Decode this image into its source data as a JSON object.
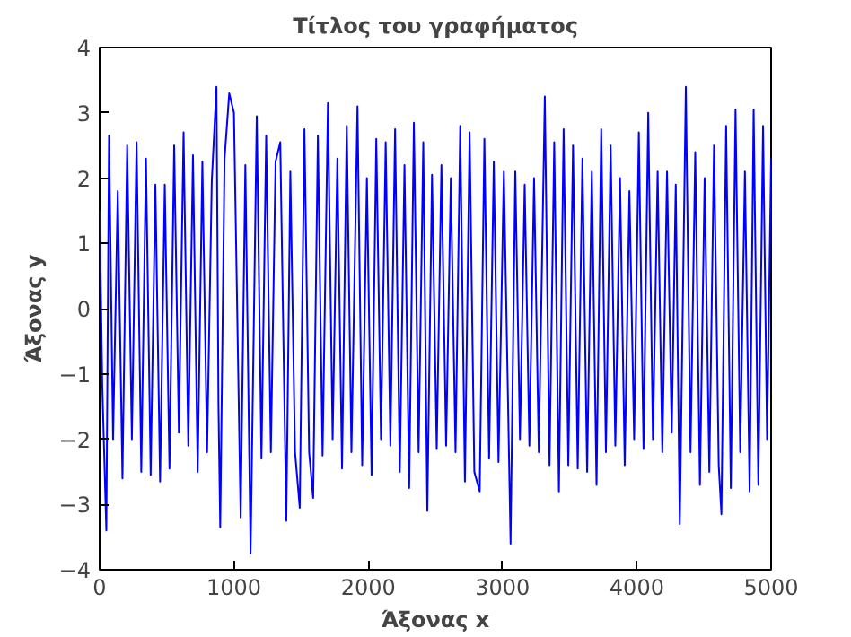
{
  "chart_data": {
    "type": "line",
    "title": "Τίτλος του γραφήματος",
    "xlabel": "Άξονας x",
    "ylabel": "Άξονας y",
    "xlim": [
      0,
      5000
    ],
    "ylim": [
      -4,
      4
    ],
    "xticks": [
      0,
      1000,
      2000,
      3000,
      4000,
      5000
    ],
    "yticks": [
      -4,
      -3,
      -2,
      -1,
      0,
      1,
      2,
      3,
      4
    ],
    "grid": false,
    "marker": "none",
    "line_style": "solid",
    "series": [
      {
        "color": "#0000ff",
        "x": [
          0,
          20,
          50,
          70,
          100,
          135,
          170,
          205,
          240,
          275,
          310,
          345,
          380,
          415,
          450,
          485,
          520,
          555,
          590,
          625,
          660,
          695,
          730,
          765,
          800,
          835,
          870,
          885,
          898,
          930,
          965,
          1000,
          1050,
          1085,
          1124,
          1170,
          1205,
          1240,
          1275,
          1310,
          1345,
          1390,
          1420,
          1455,
          1490,
          1525,
          1560,
          1590,
          1625,
          1660,
          1700,
          1735,
          1770,
          1805,
          1840,
          1875,
          1920,
          1955,
          1990,
          2025,
          2060,
          2095,
          2130,
          2165,
          2200,
          2235,
          2270,
          2305,
          2340,
          2375,
          2410,
          2440,
          2475,
          2510,
          2545,
          2580,
          2615,
          2650,
          2685,
          2720,
          2755,
          2790,
          2830,
          2865,
          2900,
          2935,
          2970,
          3010,
          3060,
          3095,
          3130,
          3165,
          3200,
          3235,
          3270,
          3315,
          3350,
          3385,
          3420,
          3455,
          3490,
          3525,
          3560,
          3595,
          3630,
          3665,
          3700,
          3735,
          3770,
          3805,
          3840,
          3875,
          3910,
          3945,
          3980,
          4015,
          4050,
          4085,
          4120,
          4155,
          4190,
          4225,
          4260,
          4290,
          4320,
          4365,
          4400,
          4435,
          4470,
          4505,
          4540,
          4575,
          4610,
          4630,
          4665,
          4700,
          4735,
          4770,
          4805,
          4840,
          4870,
          4905,
          4940,
          4970,
          5000
        ],
        "values": [
          1.5,
          -1.2,
          -3.4,
          2.65,
          -2.0,
          1.8,
          -2.6,
          2.5,
          -2.0,
          2.55,
          -2.5,
          2.3,
          -2.55,
          1.9,
          -2.65,
          1.9,
          -2.45,
          2.5,
          -1.9,
          2.7,
          -2.1,
          2.35,
          -2.5,
          2.25,
          -2.2,
          1.95,
          3.4,
          -1.5,
          -3.35,
          2.3,
          3.3,
          3.0,
          -3.2,
          2.2,
          -3.75,
          2.95,
          -2.3,
          2.65,
          -2.2,
          2.25,
          2.55,
          -3.25,
          2.1,
          -2.2,
          -3.05,
          2.75,
          -2.2,
          -2.9,
          2.65,
          -2.25,
          3.15,
          -2.0,
          2.3,
          -2.45,
          2.8,
          -2.2,
          3.1,
          -2.4,
          2.0,
          -2.55,
          2.6,
          -2.0,
          2.55,
          -2.1,
          2.75,
          -2.5,
          2.2,
          -2.75,
          2.85,
          -2.2,
          2.55,
          -3.1,
          2.05,
          -2.15,
          2.2,
          -2.1,
          2.0,
          -2.2,
          2.8,
          -2.65,
          2.7,
          -2.5,
          -2.8,
          2.6,
          -2.3,
          2.25,
          -2.35,
          2.1,
          -3.6,
          2.1,
          -2.0,
          1.9,
          -2.1,
          2.0,
          -2.2,
          3.25,
          -2.4,
          2.55,
          -2.8,
          2.75,
          -2.4,
          2.5,
          -2.45,
          2.3,
          -2.5,
          2.1,
          -2.7,
          2.75,
          -2.2,
          2.5,
          -2.1,
          2.0,
          -2.4,
          1.8,
          -2.0,
          2.7,
          -2.15,
          3.0,
          -2.0,
          2.1,
          -2.2,
          2.1,
          -1.9,
          1.9,
          -3.3,
          3.4,
          -2.2,
          2.4,
          -2.7,
          2.0,
          -2.5,
          2.5,
          -2.4,
          -3.15,
          2.8,
          -2.75,
          3.05,
          -2.2,
          2.1,
          -2.8,
          3.05,
          -2.7,
          2.8,
          -2.0,
          2.3
        ]
      }
    ]
  }
}
